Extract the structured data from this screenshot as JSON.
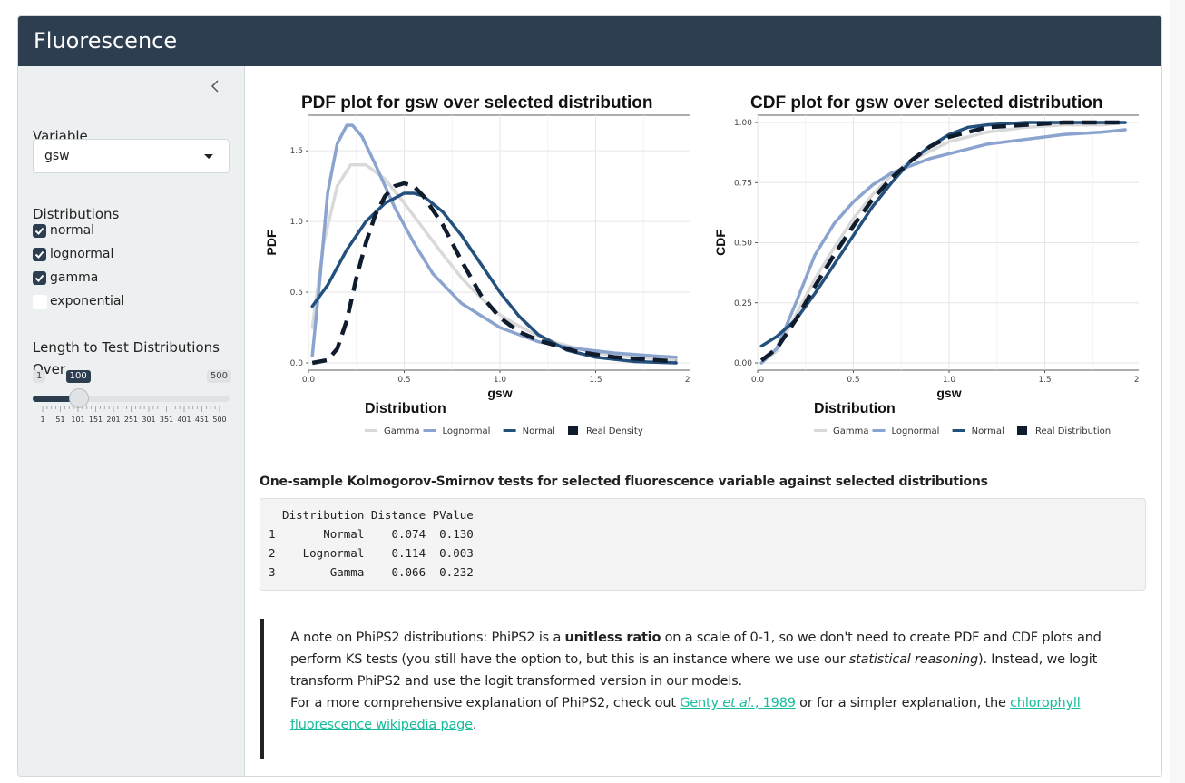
{
  "app": {
    "title": "Fluorescence"
  },
  "sidebar": {
    "variable_label": "Variable",
    "variable_value": "gsw",
    "distributions_label": "Distributions",
    "distributions": [
      {
        "label": "normal",
        "checked": true
      },
      {
        "label": "lognormal",
        "checked": true
      },
      {
        "label": "gamma",
        "checked": true
      },
      {
        "label": "exponential",
        "checked": false
      }
    ],
    "slider": {
      "label_line1": "Length to Test Distributions",
      "label_line2": "Over",
      "min": "1",
      "max": "500",
      "value": "100",
      "value_num": 100,
      "min_num": 1,
      "max_num": 500,
      "ticks": [
        "1",
        "51",
        "101",
        "151",
        "201",
        "251",
        "301",
        "351",
        "401",
        "451",
        "500"
      ]
    }
  },
  "colors": {
    "header": "#2c3e50",
    "gamma": "#d9d9d9",
    "lognormal": "#8aa3cf",
    "normal": "#24507e",
    "real": "#0f1c2e",
    "link": "#18bc9c"
  },
  "chart_data": [
    {
      "type": "line",
      "title": "PDF plot for gsw over selected distribution",
      "xlabel": "gsw",
      "ylabel": "PDF",
      "xlim": [
        0,
        2
      ],
      "ylim": [
        0,
        1.7
      ],
      "xticks": [
        "0.0",
        "0.5",
        "1.0",
        "1.5",
        "2.0"
      ],
      "yticks": [
        "0.0",
        "0.5",
        "1.0",
        "1.5"
      ],
      "legend_title": "Distribution",
      "legend_position": "bottom",
      "series": [
        {
          "name": "Gamma",
          "color": "#d9d9d9",
          "dash": false,
          "x": [
            0.02,
            0.08,
            0.15,
            0.22,
            0.3,
            0.4,
            0.5,
            0.6,
            0.7,
            0.8,
            0.9,
            1.0,
            1.1,
            1.2,
            1.3,
            1.5,
            1.7,
            1.92
          ],
          "y": [
            0.25,
            0.85,
            1.25,
            1.4,
            1.4,
            1.3,
            1.13,
            0.95,
            0.77,
            0.6,
            0.46,
            0.34,
            0.26,
            0.19,
            0.14,
            0.07,
            0.04,
            0.02
          ]
        },
        {
          "name": "Lognormal",
          "color": "#8aa3cf",
          "dash": false,
          "x": [
            0.02,
            0.06,
            0.1,
            0.15,
            0.2,
            0.23,
            0.28,
            0.35,
            0.45,
            0.55,
            0.65,
            0.8,
            1.0,
            1.2,
            1.4,
            1.6,
            1.8,
            1.92
          ],
          "y": [
            0.05,
            0.6,
            1.2,
            1.55,
            1.68,
            1.68,
            1.6,
            1.4,
            1.1,
            0.85,
            0.63,
            0.42,
            0.25,
            0.15,
            0.1,
            0.07,
            0.05,
            0.04
          ]
        },
        {
          "name": "Normal",
          "color": "#24507e",
          "dash": false,
          "x": [
            0.02,
            0.1,
            0.2,
            0.3,
            0.4,
            0.5,
            0.55,
            0.6,
            0.7,
            0.8,
            0.9,
            1.0,
            1.1,
            1.2,
            1.35,
            1.5,
            1.7,
            1.92
          ],
          "y": [
            0.4,
            0.55,
            0.8,
            1.0,
            1.13,
            1.2,
            1.2,
            1.18,
            1.07,
            0.9,
            0.7,
            0.5,
            0.33,
            0.2,
            0.09,
            0.04,
            0.01,
            0.0
          ]
        },
        {
          "name": "Real Density",
          "color": "#0f1c2e",
          "dash": true,
          "x": [
            0.02,
            0.1,
            0.15,
            0.2,
            0.25,
            0.3,
            0.35,
            0.4,
            0.45,
            0.5,
            0.55,
            0.6,
            0.7,
            0.8,
            0.9,
            1.0,
            1.1,
            1.2,
            1.4,
            1.6,
            1.92
          ],
          "y": [
            0.0,
            0.02,
            0.1,
            0.3,
            0.6,
            0.85,
            1.05,
            1.18,
            1.25,
            1.27,
            1.25,
            1.18,
            0.98,
            0.72,
            0.48,
            0.32,
            0.22,
            0.16,
            0.08,
            0.04,
            0.01
          ]
        }
      ]
    },
    {
      "type": "line",
      "title": "CDF plot for gsw over selected distribution",
      "xlabel": "gsw",
      "ylabel": "CDF",
      "xlim": [
        0,
        2
      ],
      "ylim": [
        0,
        1
      ],
      "xticks": [
        "0.0",
        "0.5",
        "1.0",
        "1.5",
        "2.0"
      ],
      "yticks": [
        "0.00",
        "0.25",
        "0.50",
        "0.75",
        "1.00"
      ],
      "legend_title": "Distribution",
      "legend_position": "bottom",
      "series": [
        {
          "name": "Gamma",
          "color": "#d9d9d9",
          "dash": false,
          "x": [
            0.02,
            0.1,
            0.2,
            0.3,
            0.4,
            0.5,
            0.6,
            0.7,
            0.8,
            0.9,
            1.0,
            1.2,
            1.4,
            1.6,
            1.8,
            1.92
          ],
          "y": [
            0.0,
            0.05,
            0.2,
            0.35,
            0.48,
            0.6,
            0.7,
            0.78,
            0.84,
            0.88,
            0.92,
            0.96,
            0.98,
            0.99,
            0.99,
            1.0
          ]
        },
        {
          "name": "Lognormal",
          "color": "#8aa3cf",
          "dash": false,
          "x": [
            0.02,
            0.1,
            0.2,
            0.3,
            0.4,
            0.5,
            0.6,
            0.7,
            0.8,
            0.9,
            1.0,
            1.2,
            1.4,
            1.6,
            1.8,
            1.92
          ],
          "y": [
            0.0,
            0.06,
            0.25,
            0.45,
            0.58,
            0.67,
            0.74,
            0.79,
            0.82,
            0.85,
            0.87,
            0.91,
            0.93,
            0.95,
            0.96,
            0.97
          ]
        },
        {
          "name": "Normal",
          "color": "#24507e",
          "dash": false,
          "x": [
            0.02,
            0.1,
            0.2,
            0.3,
            0.4,
            0.5,
            0.6,
            0.7,
            0.8,
            0.9,
            1.0,
            1.1,
            1.2,
            1.4,
            1.6,
            1.92
          ],
          "y": [
            0.07,
            0.11,
            0.18,
            0.29,
            0.41,
            0.53,
            0.65,
            0.75,
            0.84,
            0.9,
            0.95,
            0.98,
            0.99,
            1.0,
            1.0,
            1.0
          ]
        },
        {
          "name": "Real Distribution",
          "color": "#0f1c2e",
          "dash": true,
          "x": [
            0.02,
            0.1,
            0.2,
            0.3,
            0.4,
            0.5,
            0.6,
            0.7,
            0.8,
            0.9,
            1.0,
            1.1,
            1.2,
            1.4,
            1.6,
            1.92
          ],
          "y": [
            0.01,
            0.06,
            0.18,
            0.32,
            0.45,
            0.57,
            0.68,
            0.77,
            0.84,
            0.9,
            0.94,
            0.96,
            0.98,
            0.99,
            1.0,
            1.0
          ]
        }
      ]
    }
  ],
  "ks": {
    "title": "One-sample Kolmogorov-Smirnov tests for selected fluorescence variable against selected distributions",
    "lines": [
      "  Distribution Distance PValue",
      "1       Normal    0.074  0.130",
      "2    Lognormal    0.114  0.003",
      "3        Gamma    0.066  0.232"
    ]
  },
  "note": {
    "p1_a": "A note on PhiPS2 distributions: PhiPS2 is a ",
    "p1_bold": "unitless ratio",
    "p1_b": " on a scale of 0-1, so we don't need to create PDF and CDF plots and perform KS tests (you still have the option to, but this is an instance where we use our ",
    "p1_italic": "statistical reasoning",
    "p1_c": "). Instead, we logit transform PhiPS2 and use the logit transformed version in our models.",
    "p2_a": "For a more comprehensive explanation of PhiPS2, check out ",
    "link1_a": "Genty ",
    "link1_italic": "et al.",
    "link1_b": ", 1989",
    "p2_b": " or for a simpler explanation, the ",
    "link2": "chlorophyll fluorescence wikipedia page",
    "p2_c": "."
  }
}
